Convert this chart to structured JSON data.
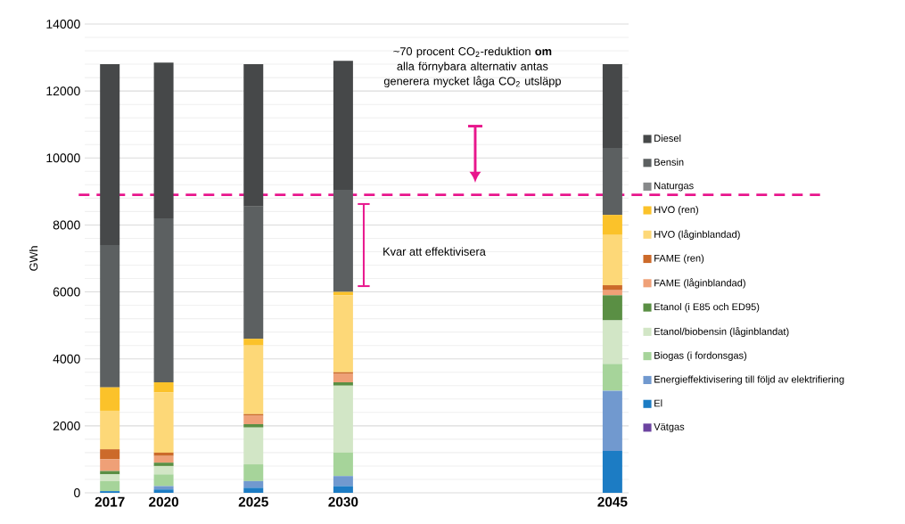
{
  "chart_data": {
    "type": "bar",
    "stacked": true,
    "ylabel": "GWh",
    "x": [
      2017,
      2020,
      2025,
      2030,
      2045
    ],
    "xlim": [
      2015.6,
      2045.9
    ],
    "xticks": [
      2017,
      2020,
      2025,
      2030,
      2045
    ],
    "ylim": [
      0,
      14000
    ],
    "yticks": [
      0,
      2000,
      4000,
      6000,
      8000,
      10000,
      12000,
      14000
    ],
    "grid": "y",
    "legend": "right",
    "series": [
      {
        "name": "Vätgas",
        "color": "#6c44a0",
        "values": [
          0,
          0,
          0,
          0,
          0
        ]
      },
      {
        "name": "El",
        "color": "#1c7cc4",
        "values": [
          50,
          100,
          150,
          200,
          1250
        ]
      },
      {
        "name": "Energieffektivisering till följd av elektrifiering",
        "color": "#7199cf",
        "values": [
          0,
          100,
          200,
          300,
          1800
        ]
      },
      {
        "name": "Biogas (i fordonsgas)",
        "color": "#a6d49a",
        "values": [
          300,
          350,
          500,
          700,
          800
        ]
      },
      {
        "name": "Etanol/biobensin (låginblandat)",
        "color": "#d2e6c6",
        "values": [
          200,
          250,
          1100,
          2000,
          1300
        ]
      },
      {
        "name": "Etanol (i E85 och ED95)",
        "color": "#5a8f44",
        "values": [
          100,
          100,
          100,
          100,
          750
        ]
      },
      {
        "name": "FAME (låginblandad)",
        "color": "#efa077",
        "values": [
          350,
          200,
          250,
          250,
          150
        ]
      },
      {
        "name": "FAME (ren)",
        "color": "#cc6a2a",
        "values": [
          300,
          100,
          50,
          50,
          150
        ]
      },
      {
        "name": "HVO (låginblandad)",
        "color": "#fdd878",
        "values": [
          1150,
          1800,
          2050,
          2300,
          1500
        ]
      },
      {
        "name": "HVO (ren)",
        "color": "#fbc22a",
        "values": [
          700,
          300,
          200,
          100,
          600
        ]
      },
      {
        "name": "Naturgas",
        "color": "#87898a",
        "values": [
          0,
          0,
          0,
          0,
          0
        ]
      },
      {
        "name": "Bensin",
        "color": "#5c6061",
        "values": [
          4250,
          4900,
          3950,
          3050,
          2000
        ]
      },
      {
        "name": "Diesel",
        "color": "#464849",
        "values": [
          5400,
          4650,
          4250,
          3850,
          2500
        ]
      }
    ],
    "ref_lines": [
      {
        "axis": "y",
        "value": 8900,
        "color": "#e8168c",
        "line_style": "dashed"
      }
    ],
    "annotations": [
      "~70 procent CO$_{2}$-reduktion **om** alla förnybara alternativ antas generera mycket låga CO$_{2}$ utsläpp",
      "Kvar att effektivisera"
    ]
  }
}
